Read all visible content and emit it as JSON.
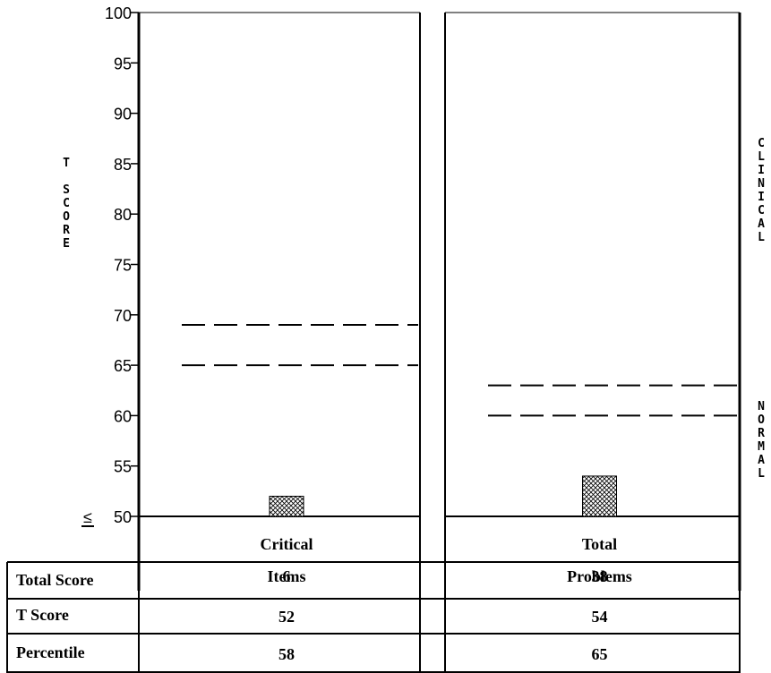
{
  "chart_data": {
    "type": "bar",
    "ylabel": "T SCORE",
    "ylim": [
      50,
      100
    ],
    "yticks": [
      "100",
      "95",
      "90",
      "85",
      "80",
      "75",
      "70",
      "65",
      "60",
      "55",
      "50"
    ],
    "floor_symbol": "≤",
    "categories": [
      "Critical Items",
      "Total Problems"
    ],
    "category_lines": [
      [
        "Critical",
        "Items"
      ],
      [
        "Total",
        "Problems"
      ]
    ],
    "values": [
      52,
      54
    ],
    "cutoffs": [
      [
        65,
        69
      ],
      [
        60,
        63
      ]
    ],
    "band_labels": {
      "clinical": "CLINICAL",
      "normal": "NORMAL"
    },
    "table": {
      "row_labels": [
        "Total Score",
        "T Score",
        "Percentile"
      ],
      "rows": [
        [
          "6",
          "38"
        ],
        [
          "52",
          "54"
        ],
        [
          "58",
          "65"
        ]
      ]
    },
    "bar_pattern": "crosshatch",
    "grid": false
  }
}
